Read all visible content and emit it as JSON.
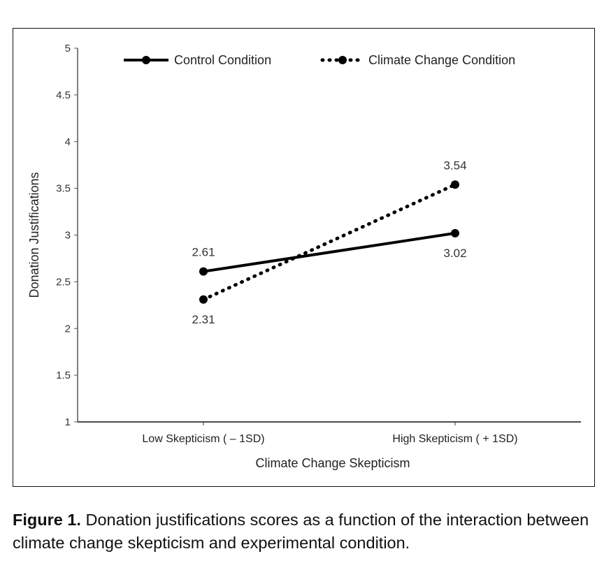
{
  "chart_data": {
    "type": "line",
    "xlabel": "Climate Change Skepticism",
    "ylabel": "Donation Justifications",
    "ylim": [
      1,
      5
    ],
    "yticks": [
      "1",
      "1.5",
      "2",
      "2.5",
      "3",
      "3.5",
      "4",
      "4.5",
      "5"
    ],
    "categories": [
      "Low Skepticism ( – 1SD)",
      "High Skepticism ( + 1SD)"
    ],
    "legend_position": "top",
    "grid": false,
    "series": [
      {
        "name": "Control Condition",
        "style": "solid",
        "color": "#000000",
        "values": [
          2.61,
          3.02
        ],
        "labels": [
          "2.61",
          "3.02"
        ]
      },
      {
        "name": "Climate Change Condition",
        "style": "dotted",
        "color": "#000000",
        "values": [
          2.31,
          3.54
        ],
        "labels": [
          "2.31",
          "3.54"
        ]
      }
    ]
  },
  "caption": {
    "label": "Figure 1.",
    "text": " Donation justifications scores as a function of the interaction between climate change skepticism and experimental condition."
  }
}
